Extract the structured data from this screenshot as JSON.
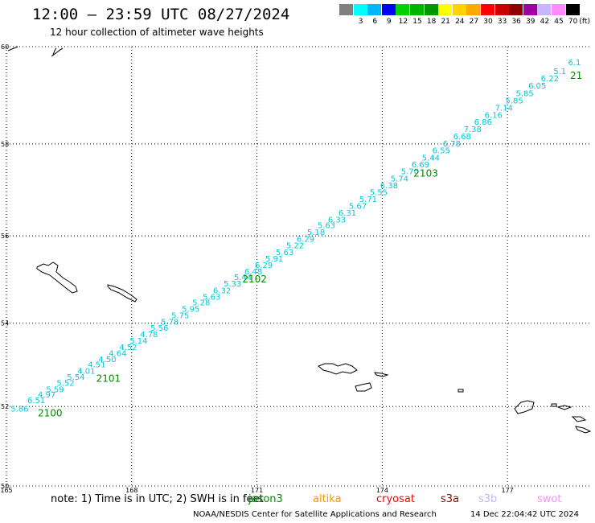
{
  "header": {
    "title": "12:00 – 23:59 UTC 08/27/2024",
    "subtitle": "12 hour collection of altimeter wave heights"
  },
  "scale": {
    "unit": "(ft)",
    "entries": [
      {
        "label": "",
        "color": "#808080"
      },
      {
        "label": "3",
        "color": "#00ffff"
      },
      {
        "label": "6",
        "color": "#00b4ff"
      },
      {
        "label": "9",
        "color": "#0000ff"
      },
      {
        "label": "12",
        "color": "#00d200"
      },
      {
        "label": "15",
        "color": "#00b400"
      },
      {
        "label": "18",
        "color": "#009600"
      },
      {
        "label": "21",
        "color": "#ffff00"
      },
      {
        "label": "24",
        "color": "#ffd200"
      },
      {
        "label": "27",
        "color": "#ffaa00"
      },
      {
        "label": "30",
        "color": "#ff0000"
      },
      {
        "label": "33",
        "color": "#c80000"
      },
      {
        "label": "36",
        "color": "#8c0000"
      },
      {
        "label": "39",
        "color": "#a000a0"
      },
      {
        "label": "42",
        "color": "#c8b4ff"
      },
      {
        "label": "45",
        "color": "#ff8cff"
      },
      {
        "label": "70",
        "color": "#000000"
      }
    ]
  },
  "axes": {
    "lat_labels": [
      "60",
      "58",
      "56",
      "54",
      "52",
      "50"
    ],
    "lon_labels": [
      "165",
      "168",
      "171",
      "174",
      "177"
    ]
  },
  "track": {
    "color": "#00c8dc",
    "time_color": "#008c00",
    "heights": [
      {
        "lon": 165.1,
        "lat": 51.87,
        "text": "5.86"
      },
      {
        "lon": 165.5,
        "lat": 52.08,
        "text": "6.51"
      },
      {
        "lon": 165.75,
        "lat": 52.22,
        "text": "4.97"
      },
      {
        "lon": 165.95,
        "lat": 52.35,
        "text": "5.59"
      },
      {
        "lon": 166.2,
        "lat": 52.5,
        "text": "5.52"
      },
      {
        "lon": 166.45,
        "lat": 52.65,
        "text": "5.54"
      },
      {
        "lon": 166.7,
        "lat": 52.8,
        "text": "4.01"
      },
      {
        "lon": 166.95,
        "lat": 52.95,
        "text": "4.51"
      },
      {
        "lon": 167.2,
        "lat": 53.08,
        "text": "4.50"
      },
      {
        "lon": 167.45,
        "lat": 53.22,
        "text": "4.64"
      },
      {
        "lon": 167.7,
        "lat": 53.37,
        "text": "4.52"
      },
      {
        "lon": 167.95,
        "lat": 53.52,
        "text": "5.14"
      },
      {
        "lon": 168.2,
        "lat": 53.67,
        "text": "4.78"
      },
      {
        "lon": 168.45,
        "lat": 53.82,
        "text": "5.56"
      },
      {
        "lon": 168.7,
        "lat": 53.97,
        "text": "5.78"
      },
      {
        "lon": 168.95,
        "lat": 54.12,
        "text": "5.75"
      },
      {
        "lon": 169.2,
        "lat": 54.27,
        "text": "5.95"
      },
      {
        "lon": 169.45,
        "lat": 54.42,
        "text": "5.28"
      },
      {
        "lon": 169.7,
        "lat": 54.55,
        "text": "5.63"
      },
      {
        "lon": 169.95,
        "lat": 54.7,
        "text": "6.32"
      },
      {
        "lon": 170.2,
        "lat": 54.85,
        "text": "5.33"
      },
      {
        "lon": 170.45,
        "lat": 55.0,
        "text": "5.44"
      },
      {
        "lon": 170.7,
        "lat": 55.13,
        "text": "6.48"
      },
      {
        "lon": 170.95,
        "lat": 55.28,
        "text": "6.29"
      },
      {
        "lon": 171.2,
        "lat": 55.42,
        "text": "5.91"
      },
      {
        "lon": 171.45,
        "lat": 55.57,
        "text": "5.63"
      },
      {
        "lon": 171.7,
        "lat": 55.72,
        "text": "5.22"
      },
      {
        "lon": 171.95,
        "lat": 55.87,
        "text": "6.29"
      },
      {
        "lon": 172.2,
        "lat": 56.02,
        "text": "5.18"
      },
      {
        "lon": 172.45,
        "lat": 56.17,
        "text": "5.63"
      },
      {
        "lon": 172.7,
        "lat": 56.3,
        "text": "6.33"
      },
      {
        "lon": 172.95,
        "lat": 56.45,
        "text": "6.31"
      },
      {
        "lon": 173.2,
        "lat": 56.6,
        "text": "5.67"
      },
      {
        "lon": 173.45,
        "lat": 56.75,
        "text": "5.71"
      },
      {
        "lon": 173.7,
        "lat": 56.9,
        "text": "5.55"
      },
      {
        "lon": 173.95,
        "lat": 57.05,
        "text": "6.38"
      },
      {
        "lon": 174.2,
        "lat": 57.2,
        "text": "5.74"
      },
      {
        "lon": 174.45,
        "lat": 57.35,
        "text": "5.70"
      },
      {
        "lon": 174.7,
        "lat": 57.5,
        "text": "6.69"
      },
      {
        "lon": 174.95,
        "lat": 57.65,
        "text": "5.44"
      },
      {
        "lon": 175.2,
        "lat": 57.8,
        "text": "6.55"
      },
      {
        "lon": 175.45,
        "lat": 57.95,
        "text": "6.78"
      },
      {
        "lon": 175.7,
        "lat": 58.1,
        "text": "6.68"
      },
      {
        "lon": 175.95,
        "lat": 58.25,
        "text": "7.38"
      },
      {
        "lon": 176.2,
        "lat": 58.4,
        "text": "6.86"
      },
      {
        "lon": 176.45,
        "lat": 58.55,
        "text": "6.16"
      },
      {
        "lon": 176.7,
        "lat": 58.7,
        "text": "7.14"
      },
      {
        "lon": 176.95,
        "lat": 58.85,
        "text": "5.85"
      },
      {
        "lon": 177.2,
        "lat": 59.0,
        "text": "5.85"
      },
      {
        "lon": 177.5,
        "lat": 59.15,
        "text": "6.05"
      },
      {
        "lon": 177.8,
        "lat": 59.3,
        "text": "6.22"
      },
      {
        "lon": 178.1,
        "lat": 59.45,
        "text": "5.1"
      },
      {
        "lon": 178.45,
        "lat": 59.63,
        "text": "6.1"
      }
    ],
    "times": [
      {
        "lon": 165.75,
        "lat": 51.75,
        "text": "2100"
      },
      {
        "lon": 167.15,
        "lat": 52.6,
        "text": "2101"
      },
      {
        "lon": 170.65,
        "lat": 54.95,
        "text": "2102"
      },
      {
        "lon": 174.75,
        "lat": 57.3,
        "text": "2103"
      },
      {
        "lon": 178.5,
        "lat": 59.35,
        "text": "21"
      }
    ]
  },
  "footer": {
    "note": "note: 1) Time is in UTC; 2) SWH is in feet",
    "satellites": [
      {
        "name": "jason3",
        "color": "#008c00"
      },
      {
        "name": "altika",
        "color": "#ff9600"
      },
      {
        "name": "cryosat",
        "color": "#ff0000"
      },
      {
        "name": "s3a",
        "color": "#8c0000"
      },
      {
        "name": "s3b",
        "color": "#c8b4ff"
      },
      {
        "name": "swot",
        "color": "#ff8cff"
      }
    ],
    "credit": "NOAA/NESDIS Center for Satellite Applications and Research",
    "timestamp": "14 Dec 22:04:42 UTC 2024"
  }
}
